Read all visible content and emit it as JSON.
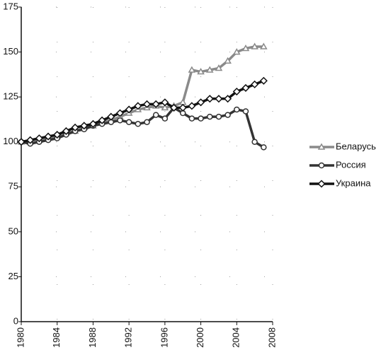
{
  "chart_data": {
    "type": "line",
    "x": [
      1980,
      1981,
      1982,
      1983,
      1984,
      1985,
      1986,
      1987,
      1988,
      1989,
      1990,
      1991,
      1992,
      1993,
      1994,
      1995,
      1996,
      1997,
      1998,
      1999,
      2000,
      2001,
      2002,
      2003,
      2004,
      2005,
      2006,
      2007
    ],
    "series": [
      {
        "name": "Беларусь",
        "color": "#8a8a8a",
        "marker": "triangle",
        "values": [
          100,
          100,
          101,
          102,
          103,
          105,
          106,
          108,
          109,
          111,
          112,
          114,
          116,
          118,
          119,
          120,
          119,
          120,
          122,
          140,
          139,
          140,
          141,
          145,
          150,
          152,
          153,
          153
        ]
      },
      {
        "name": "Россия",
        "color": "#333333",
        "marker": "circle",
        "values": [
          100,
          99,
          100,
          101,
          102,
          104,
          106,
          107,
          109,
          110,
          111,
          112,
          111,
          110,
          111,
          115,
          113,
          119,
          116,
          113,
          113,
          114,
          114,
          115,
          118,
          117,
          100,
          97
        ]
      },
      {
        "name": "Украина",
        "color": "#111111",
        "marker": "diamond",
        "values": [
          100,
          101,
          102,
          103,
          104,
          106,
          108,
          109,
          110,
          112,
          114,
          116,
          118,
          120,
          121,
          121,
          122,
          119,
          119,
          120,
          122,
          124,
          124,
          124,
          128,
          130,
          132,
          134
        ]
      }
    ],
    "xlim": [
      1980,
      2008
    ],
    "xticks": [
      1980,
      1984,
      1988,
      1992,
      1996,
      2000,
      2004,
      2008
    ],
    "ylim": [
      0,
      175
    ],
    "yticks": [
      0,
      25,
      50,
      75,
      100,
      125,
      150,
      175
    ],
    "grid": true,
    "legend": "right"
  }
}
